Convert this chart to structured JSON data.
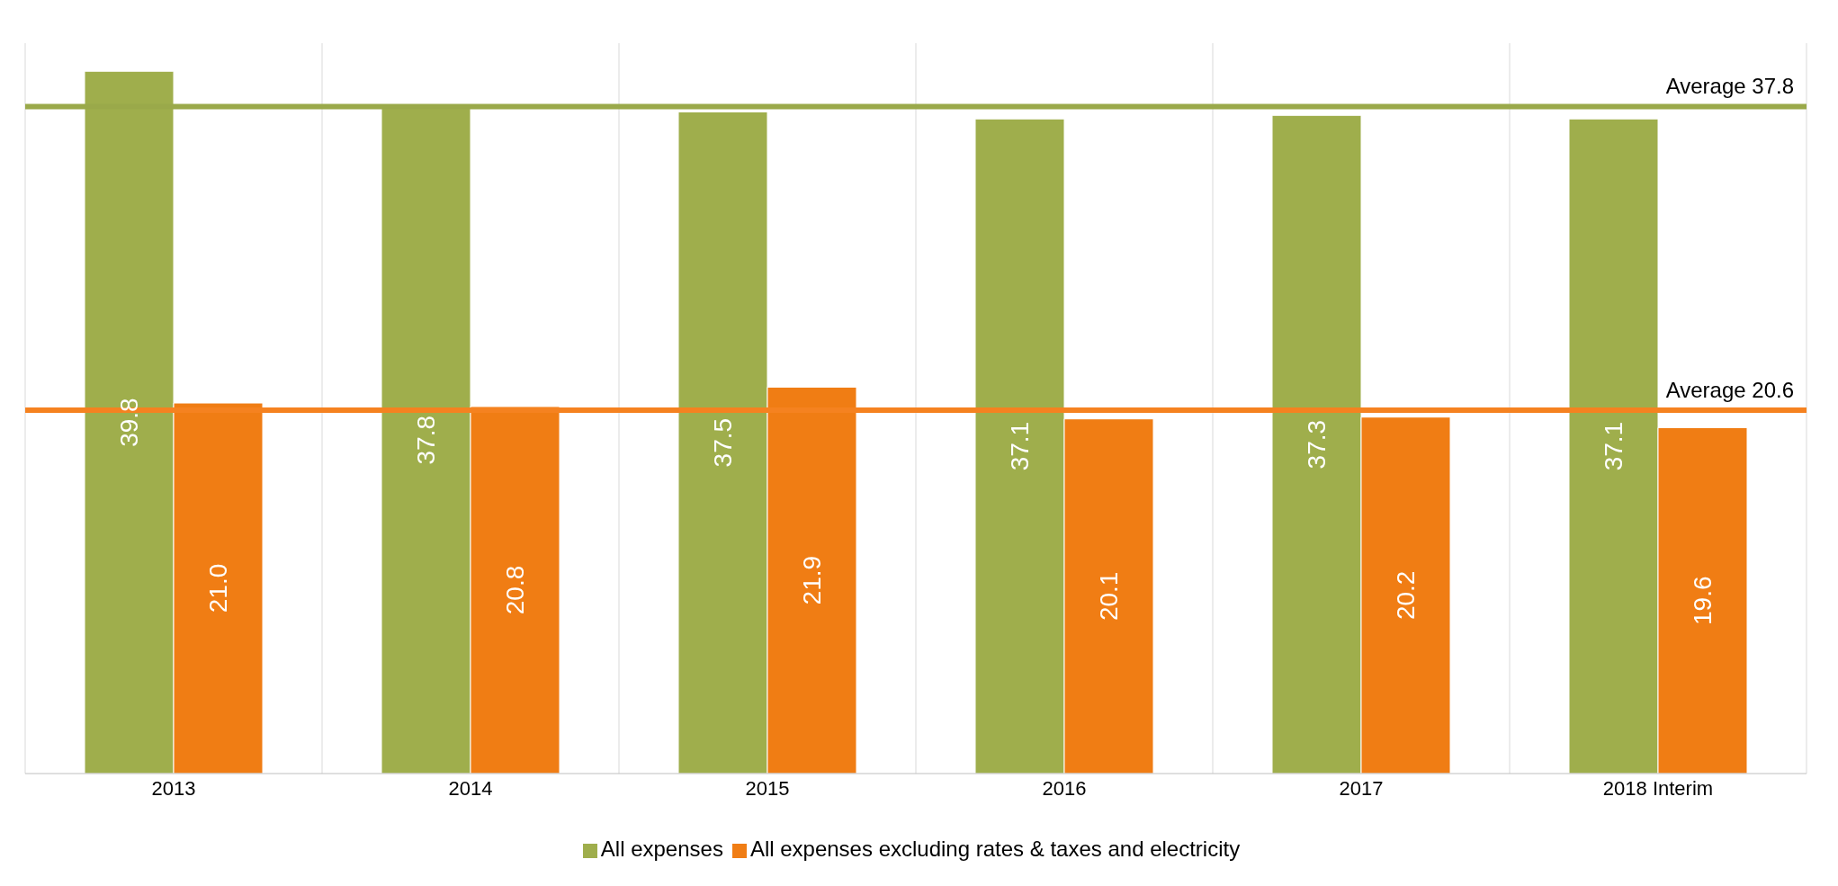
{
  "chart_data": {
    "type": "bar",
    "categories": [
      "2013",
      "2014",
      "2015",
      "2016",
      "2017",
      "2018 Interim"
    ],
    "series": [
      {
        "name": "All expenses",
        "color": "#9fae4c",
        "values": [
          39.8,
          37.8,
          37.5,
          37.1,
          37.3,
          37.1
        ],
        "value_labels": [
          "39.8",
          "37.8",
          "37.5",
          "37.1",
          "37.3",
          "37.1"
        ]
      },
      {
        "name": "All expenses excluding rates & taxes and electricity",
        "color": "#f07d14",
        "values": [
          21.0,
          20.8,
          21.9,
          20.1,
          20.2,
          19.6
        ],
        "value_labels": [
          "21.0",
          "20.8",
          "21.9",
          "20.1",
          "20.2",
          "19.6"
        ]
      }
    ],
    "ref_lines": [
      {
        "axis": "y",
        "value": 37.8,
        "label": "Average 37.8",
        "color": "#9aa94a"
      },
      {
        "axis": "y",
        "value": 20.6,
        "label": "Average 20.6",
        "color": "#f58220"
      }
    ],
    "grid": "x",
    "legend": "bottom"
  }
}
